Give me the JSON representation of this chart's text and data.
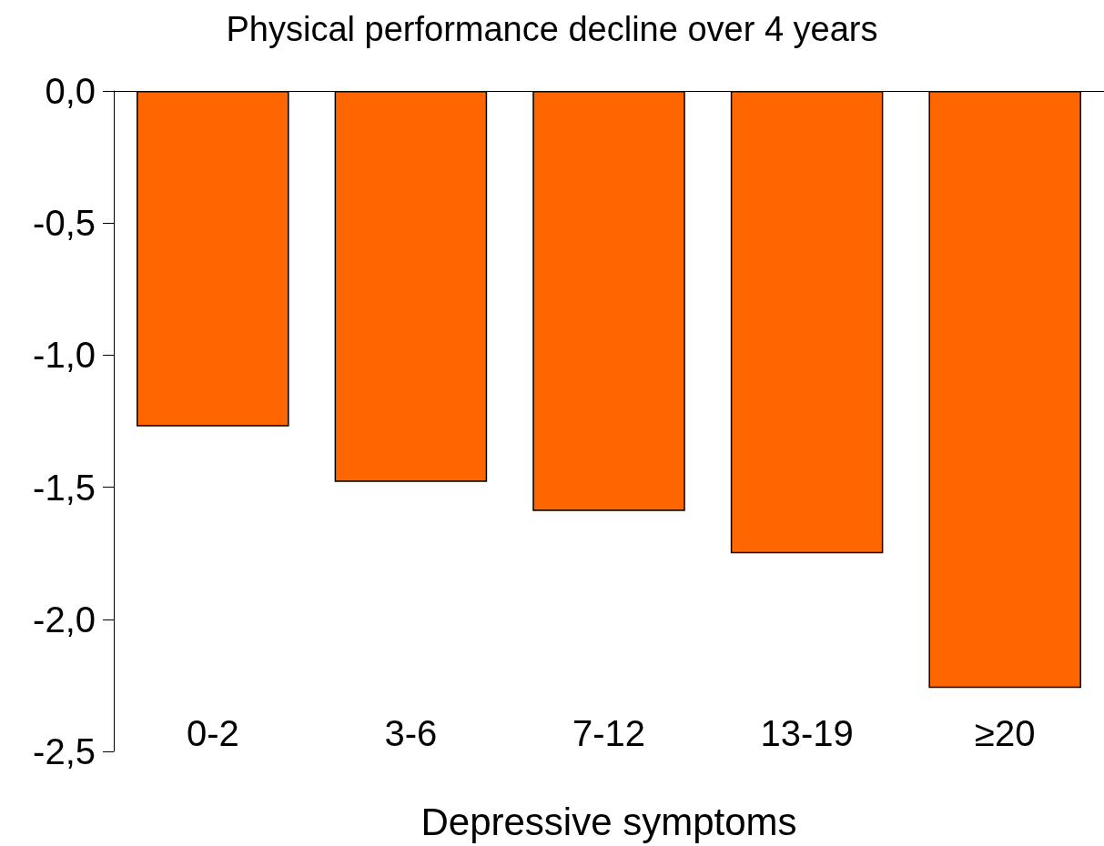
{
  "chart_data": {
    "type": "bar",
    "title": "Physical performance decline over 4 years",
    "xlabel": "Depressive symptoms",
    "categories": [
      "0-2",
      "3-6",
      "7-12",
      "13-19",
      "≥20"
    ],
    "values": [
      -1.27,
      -1.48,
      -1.59,
      -1.75,
      -2.26
    ],
    "color": "#ff6600",
    "ylim": [
      -2.5,
      0
    ],
    "yticks": [
      {
        "value": 0,
        "label": "0,0"
      },
      {
        "value": -0.5,
        "label": "-0,5"
      },
      {
        "value": -1,
        "label": "-1,0"
      },
      {
        "value": -1.5,
        "label": "-1,5"
      },
      {
        "value": -2,
        "label": "-2,0"
      },
      {
        "value": -2.5,
        "label": "-2,5"
      }
    ],
    "grid": false
  }
}
